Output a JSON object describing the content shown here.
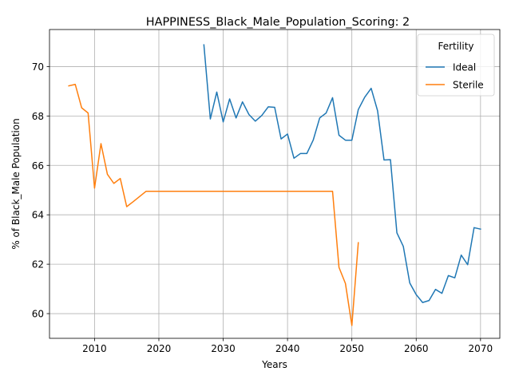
{
  "chart_data": {
    "type": "line",
    "title": "HAPPINESS_Black_Male_Population_Scoring: 2",
    "xlabel": "Years",
    "ylabel": "% of Black_Male Population",
    "xlim": [
      2003,
      2073
    ],
    "ylim": [
      59,
      71.5
    ],
    "xticks": [
      2010,
      2020,
      2030,
      2040,
      2050,
      2060,
      2070
    ],
    "yticks": [
      60,
      62,
      64,
      66,
      68,
      70
    ],
    "grid": true,
    "legend": {
      "title": "Fertility",
      "placement": "top-right"
    },
    "series": [
      {
        "name": "Ideal",
        "color": "#1f77b4",
        "x": [
          2027,
          2028,
          2029,
          2030,
          2031,
          2032,
          2033,
          2034,
          2035,
          2036,
          2037,
          2038,
          2039,
          2040,
          2041,
          2042,
          2043,
          2044,
          2045,
          2046,
          2047,
          2048,
          2049,
          2050,
          2051,
          2052,
          2053,
          2054,
          2055,
          2056,
          2057,
          2058,
          2059,
          2060,
          2061,
          2062,
          2063,
          2064,
          2065,
          2066,
          2067,
          2068,
          2069,
          2070
        ],
        "y": [
          70.88,
          67.88,
          68.97,
          67.76,
          68.69,
          67.92,
          68.57,
          68.06,
          67.79,
          68.02,
          68.37,
          68.35,
          67.07,
          67.27,
          66.29,
          66.48,
          66.48,
          67.03,
          67.92,
          68.12,
          68.74,
          67.22,
          67.02,
          67.02,
          68.26,
          68.76,
          69.12,
          68.21,
          66.22,
          66.23,
          63.27,
          62.72,
          61.24,
          60.77,
          60.45,
          60.53,
          60.98,
          60.82,
          61.54,
          61.45,
          62.37,
          61.98,
          63.48,
          63.42
        ]
      },
      {
        "name": "Sterile",
        "color": "#ff7f0e",
        "x": [
          2006,
          2007,
          2008,
          2009,
          2010,
          2011,
          2012,
          2013,
          2014,
          2015,
          2016,
          2017,
          2018,
          2019,
          2020,
          2025,
          2030,
          2035,
          2040,
          2045,
          2046,
          2047,
          2048,
          2049,
          2050,
          2051
        ],
        "y": [
          69.22,
          69.28,
          68.33,
          68.12,
          65.08,
          66.88,
          65.64,
          65.27,
          65.47,
          64.33,
          64.53,
          64.74,
          64.95,
          64.95,
          64.95,
          64.95,
          64.95,
          64.95,
          64.95,
          64.95,
          64.95,
          64.95,
          61.87,
          61.22,
          59.52,
          62.87
        ]
      }
    ]
  }
}
